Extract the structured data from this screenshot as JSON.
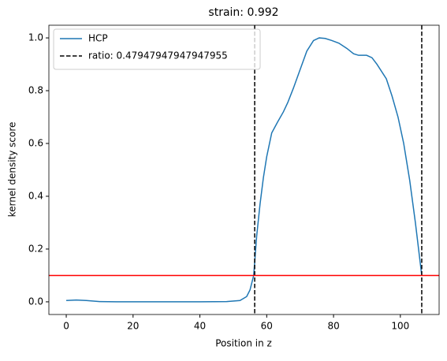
{
  "chart_data": {
    "type": "line",
    "title": "strain: 0.992",
    "xlabel": "Position in z",
    "ylabel": "kernel density score",
    "x": [
      0,
      3,
      6,
      10,
      15,
      20,
      30,
      40,
      48,
      52,
      54,
      55,
      56.1,
      57,
      58,
      59,
      60,
      61.5,
      63.2,
      65,
      66.3,
      68,
      70,
      72,
      74,
      75.7,
      77.5,
      79.5,
      81.6,
      84,
      86,
      87.5,
      89.9,
      91.5,
      93,
      95.8,
      97.5,
      99.3,
      101,
      102.8,
      104.5,
      106.4
    ],
    "series": [
      {
        "name": "HCP",
        "color": "#1f77b4",
        "values": [
          0.005,
          0.007,
          0.005,
          0.001,
          0,
          0,
          0,
          0,
          0.001,
          0.005,
          0.02,
          0.045,
          0.1,
          0.25,
          0.37,
          0.47,
          0.55,
          0.64,
          0.68,
          0.72,
          0.755,
          0.81,
          0.88,
          0.95,
          0.99,
          1.0,
          0.998,
          0.99,
          0.98,
          0.96,
          0.94,
          0.934,
          0.934,
          0.925,
          0.9,
          0.845,
          0.78,
          0.7,
          0.6,
          0.46,
          0.3,
          0.1
        ]
      }
    ],
    "vlines": {
      "name": "ratio: 0.47947947947947955",
      "color": "#000000",
      "values": [
        56.4,
        106.4
      ]
    },
    "hline": {
      "value": 0.1,
      "color": "#ff0000"
    },
    "xlim": [
      -5.2,
      111.6
    ],
    "ylim": [
      -0.048,
      1.048
    ],
    "xticks": [
      0,
      20,
      40,
      60,
      80,
      100
    ],
    "yticks": [
      {
        "value": 0,
        "label": "0.0"
      },
      0.2,
      0.4,
      0.6,
      0.8,
      {
        "value": 1,
        "label": "1.0"
      }
    ],
    "legend": "upper left"
  }
}
